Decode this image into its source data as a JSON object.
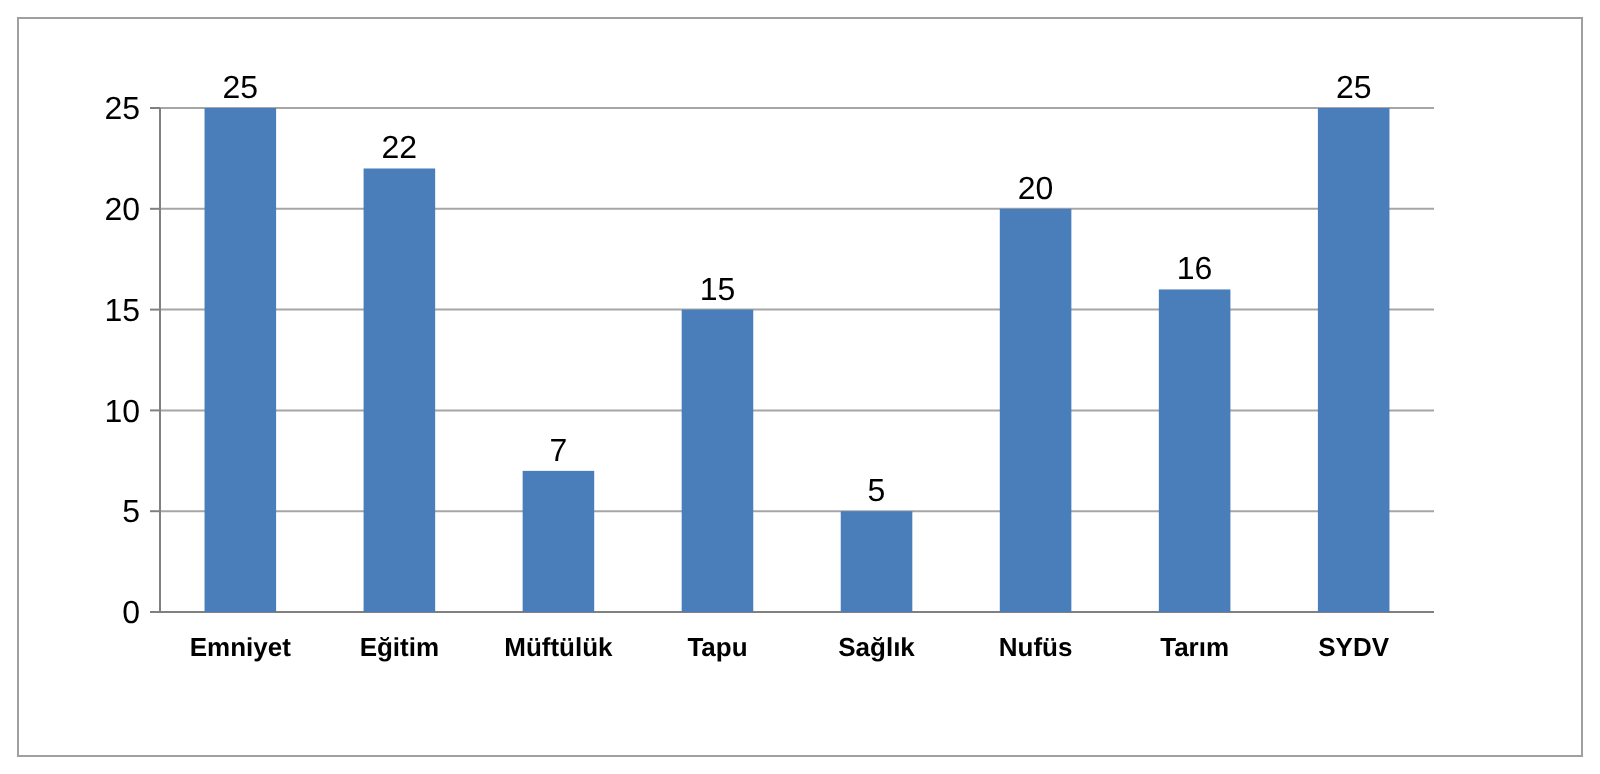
{
  "chart_data": {
    "type": "bar",
    "categories": [
      "Emniyet",
      "Eğitim",
      "Müftülük",
      "Tapu",
      "Sağlık",
      "Nufüs",
      "Tarım",
      "SYDV"
    ],
    "values": [
      25,
      22,
      7,
      15,
      5,
      20,
      16,
      25
    ],
    "color": "#4a7ebb",
    "ylim": [
      0,
      25
    ],
    "yticks": [
      0,
      5,
      10,
      15,
      20,
      25
    ],
    "grid": "y",
    "data_labels": true
  }
}
